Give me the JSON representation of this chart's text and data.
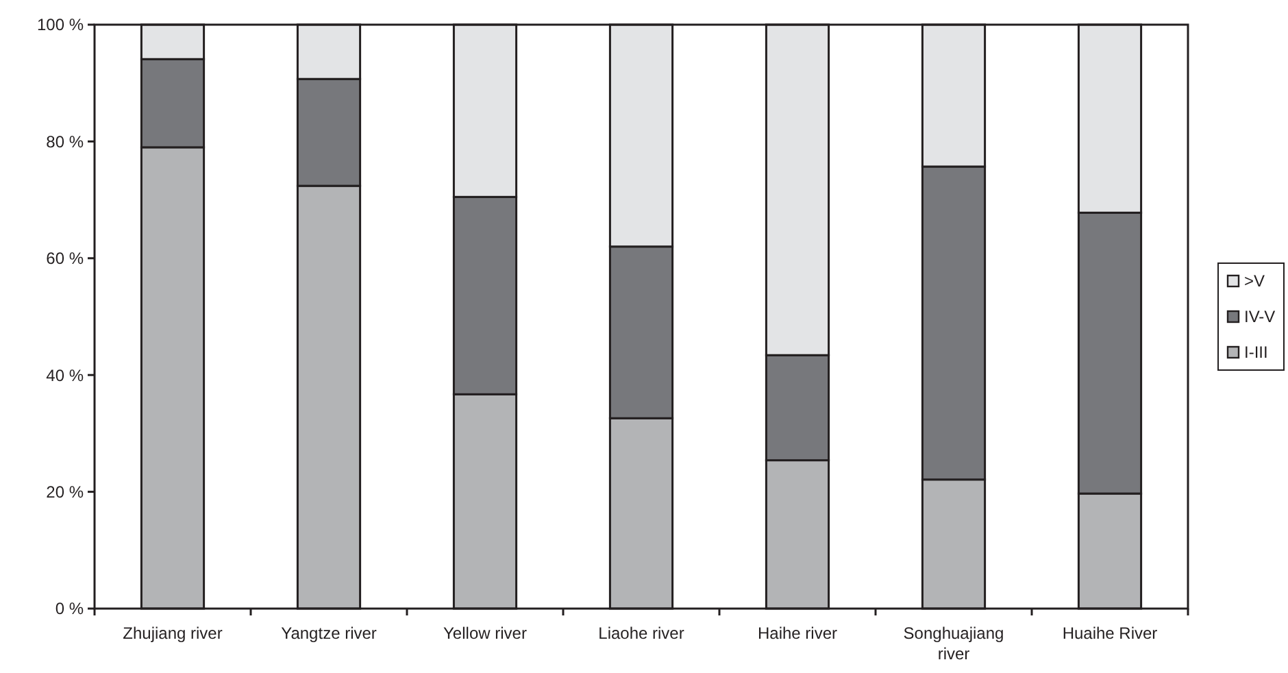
{
  "chart_data": {
    "type": "bar",
    "stacked": true,
    "categories": [
      "Zhujiang river",
      "Yangtze river",
      "Yellow river",
      "Liaohe river",
      "Haihe river",
      "Songhuajiang river",
      "Huaihe River"
    ],
    "series": [
      {
        "name": "I-III",
        "color": "#b3b4b6",
        "values": [
          79,
          72.4,
          36.7,
          32.6,
          25.4,
          22.1,
          19.7
        ]
      },
      {
        "name": "IV-V",
        "color": "#77787c",
        "values": [
          15.1,
          18.3,
          33.8,
          29.4,
          18,
          53.6,
          48.1
        ]
      },
      {
        "name": ">V",
        "color": "#e3e4e6",
        "values": [
          5.9,
          9.3,
          29.5,
          38,
          56.6,
          24.3,
          32.2
        ]
      }
    ],
    "ylim": [
      0,
      100
    ],
    "yticks": [
      {
        "value": 0,
        "label": "0 %"
      },
      {
        "value": 20,
        "label": "20 %"
      },
      {
        "value": 40,
        "label": "40 %"
      },
      {
        "value": 60,
        "label": "60 %"
      },
      {
        "value": 80,
        "label": "80 %"
      },
      {
        "value": 100,
        "label": "100 %"
      }
    ],
    "legend": "right",
    "grid": false
  }
}
